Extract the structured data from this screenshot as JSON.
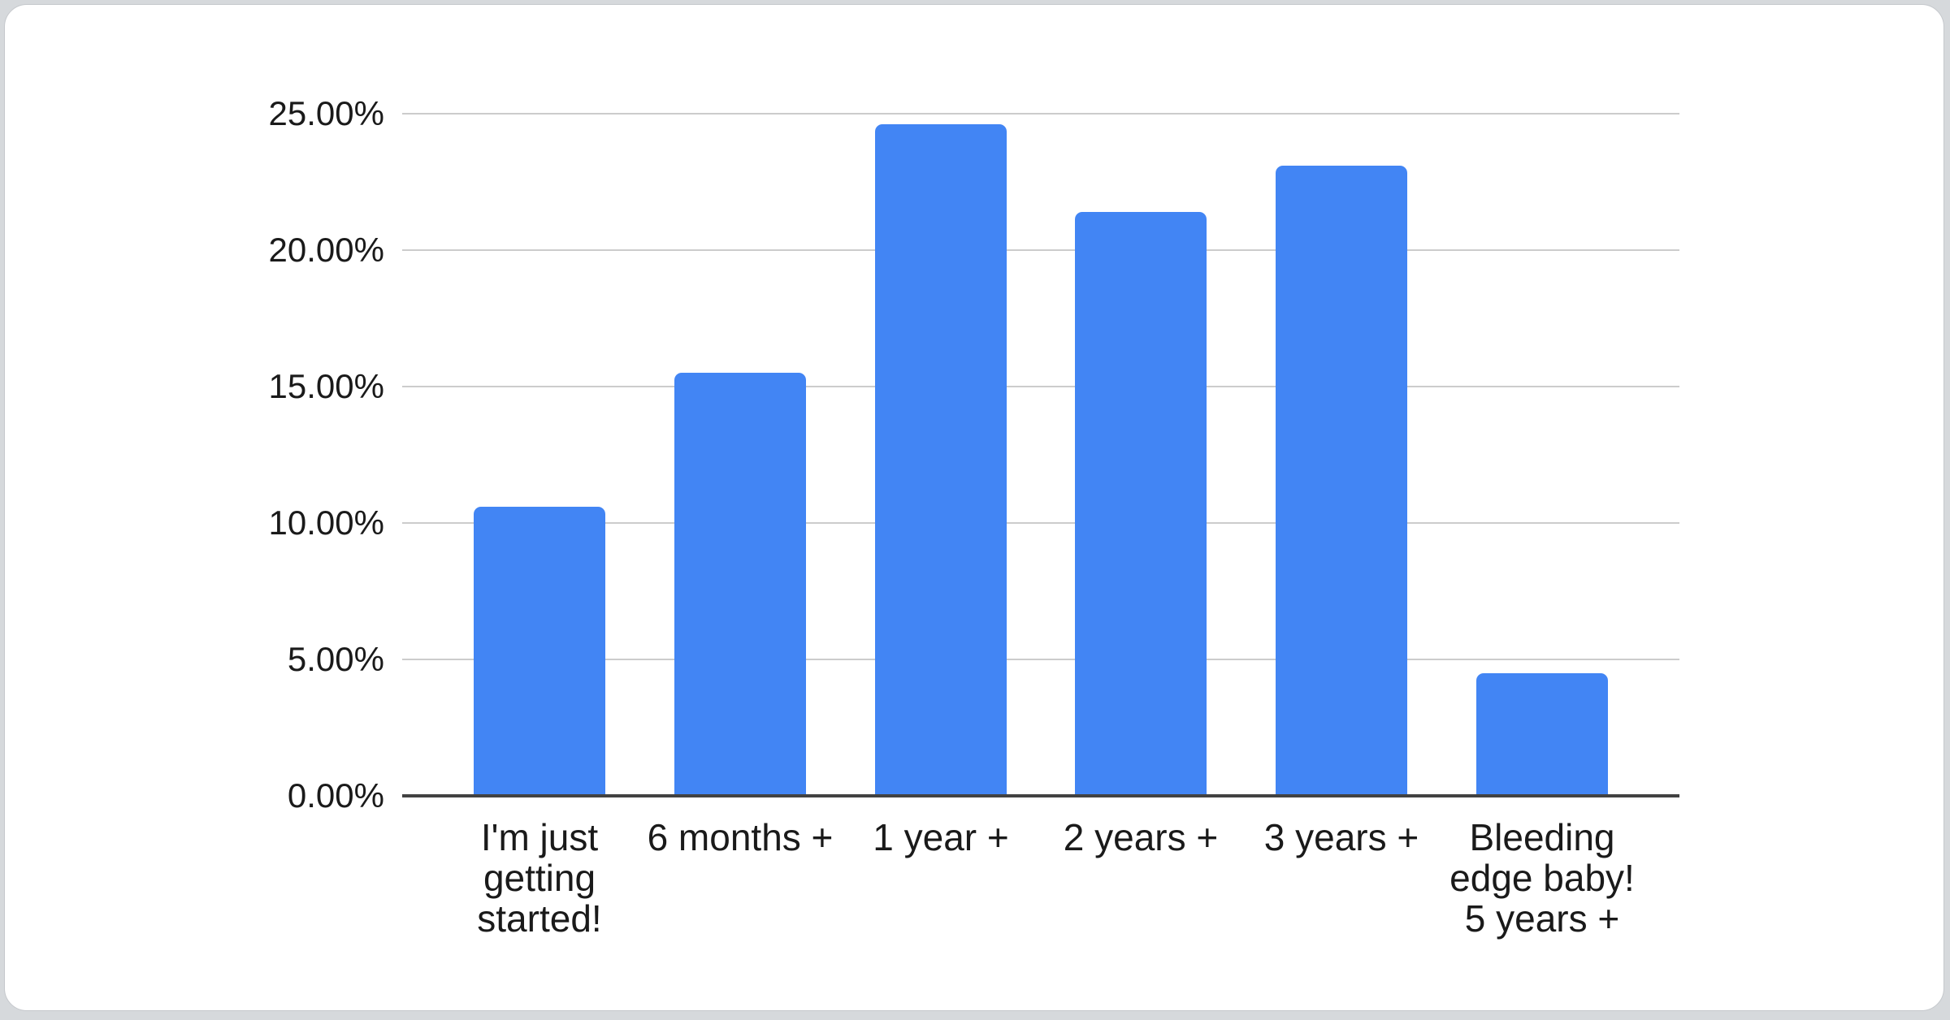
{
  "page": {
    "background_color": "#d6d9dc",
    "card_color": "#ffffff"
  },
  "chart_data": {
    "type": "bar",
    "title": "",
    "xlabel": "",
    "ylabel": "",
    "categories": [
      "I'm just\ngetting\nstarted!",
      "6 months +",
      "1 year +",
      "2 years +",
      "3 years +",
      "Bleeding\nedge baby!\n5 years +"
    ],
    "values": [
      10.6,
      15.5,
      24.6,
      21.4,
      23.1,
      4.5
    ],
    "value_unit": "%",
    "ylim": [
      0,
      25
    ],
    "y_tick_step": 5,
    "y_tick_labels": [
      "0.00%",
      "5.00%",
      "10.00%",
      "15.00%",
      "20.00%",
      "25.00%"
    ],
    "grid": true,
    "legend_position": "none",
    "bar_color": "#4285F4",
    "gridline_color": "#cccccc",
    "axis_line_color": "#424242",
    "label_color": "#1a1a1a"
  }
}
